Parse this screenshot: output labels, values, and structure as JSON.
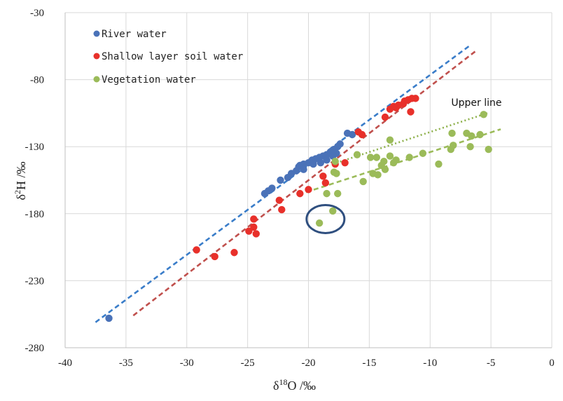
{
  "chart_data": {
    "type": "scatter",
    "title": "",
    "xlabel": "δ18O /‰",
    "xlabel_base": "δ",
    "xlabel_sup": "18",
    "xlabel_rest": "O /‰",
    "ylabel": "δ2H /‰",
    "ylabel_base": "δ",
    "ylabel_sup": "2",
    "ylabel_rest": "H /‰",
    "xlim": [
      -40,
      0
    ],
    "ylim": [
      -280,
      -30
    ],
    "xticks": [
      -40,
      -35,
      -30,
      -25,
      -20,
      -15,
      -10,
      -5,
      0
    ],
    "yticks": [
      -30,
      -80,
      -130,
      -180,
      -230,
      -280
    ],
    "grid": true,
    "legend_position": "top-left",
    "series": [
      {
        "name": "River water",
        "color": "#4a72b8",
        "points": [
          [
            -36.4,
            -258
          ],
          [
            -23.6,
            -165
          ],
          [
            -23.3,
            -163
          ],
          [
            -23.0,
            -161
          ],
          [
            -22.3,
            -155
          ],
          [
            -21.7,
            -153
          ],
          [
            -21.4,
            -150
          ],
          [
            -21.0,
            -148
          ],
          [
            -20.7,
            -144
          ],
          [
            -20.4,
            -143
          ],
          [
            -20.8,
            -145
          ],
          [
            -20.4,
            -147
          ],
          [
            -20.0,
            -142
          ],
          [
            -19.7,
            -140
          ],
          [
            -19.4,
            -139
          ],
          [
            -19.1,
            -138
          ],
          [
            -18.8,
            -137
          ],
          [
            -18.5,
            -136
          ],
          [
            -18.2,
            -134
          ],
          [
            -17.9,
            -132
          ],
          [
            -17.6,
            -130
          ],
          [
            -17.4,
            -128
          ],
          [
            -17.7,
            -135
          ],
          [
            -18.0,
            -137
          ],
          [
            -18.5,
            -140
          ],
          [
            -19.0,
            -142
          ],
          [
            -19.6,
            -143
          ],
          [
            -16.8,
            -120
          ],
          [
            -16.4,
            -121
          ]
        ]
      },
      {
        "name": "Shallow layer soil water",
        "color": "#e8302a",
        "points": [
          [
            -29.2,
            -207
          ],
          [
            -27.7,
            -212
          ],
          [
            -26.1,
            -209
          ],
          [
            -24.9,
            -193
          ],
          [
            -24.5,
            -190
          ],
          [
            -24.5,
            -184
          ],
          [
            -24.3,
            -195
          ],
          [
            -22.4,
            -170
          ],
          [
            -22.2,
            -177
          ],
          [
            -20.7,
            -165
          ],
          [
            -20.0,
            -162
          ],
          [
            -18.8,
            -152
          ],
          [
            -18.6,
            -157
          ],
          [
            -17.8,
            -143
          ],
          [
            -17.0,
            -142
          ],
          [
            -15.9,
            -119
          ],
          [
            -15.6,
            -121
          ],
          [
            -13.7,
            -108
          ],
          [
            -13.3,
            -102
          ],
          [
            -13.0,
            -100
          ],
          [
            -12.8,
            -101
          ],
          [
            -12.6,
            -99
          ],
          [
            -12.2,
            -98
          ],
          [
            -12.1,
            -96
          ],
          [
            -11.8,
            -95
          ],
          [
            -11.5,
            -94
          ],
          [
            -11.2,
            -94
          ],
          [
            -11.6,
            -104
          ]
        ]
      },
      {
        "name": "Vegetation water",
        "color": "#9bbb59",
        "points": [
          [
            -19.1,
            -187
          ],
          [
            -18.0,
            -178
          ],
          [
            -18.5,
            -165
          ],
          [
            -17.6,
            -165
          ],
          [
            -17.9,
            -149
          ],
          [
            -17.7,
            -150
          ],
          [
            -17.8,
            -141
          ],
          [
            -16.0,
            -136
          ],
          [
            -15.5,
            -156
          ],
          [
            -14.9,
            -138
          ],
          [
            -14.4,
            -138
          ],
          [
            -14.7,
            -150
          ],
          [
            -14.3,
            -151
          ],
          [
            -14.0,
            -144
          ],
          [
            -13.7,
            -147
          ],
          [
            -13.8,
            -141
          ],
          [
            -13.3,
            -137
          ],
          [
            -13.3,
            -125
          ],
          [
            -13.0,
            -142
          ],
          [
            -12.8,
            -140
          ],
          [
            -11.7,
            -138
          ],
          [
            -10.6,
            -135
          ],
          [
            -9.3,
            -143
          ],
          [
            -8.3,
            -132
          ],
          [
            -8.1,
            -129
          ],
          [
            -8.2,
            -120
          ],
          [
            -7.0,
            -120
          ],
          [
            -6.7,
            -130
          ],
          [
            -6.6,
            -122
          ],
          [
            -5.9,
            -121
          ],
          [
            -5.6,
            -106
          ],
          [
            -5.2,
            -132
          ]
        ]
      }
    ],
    "trendlines": [
      {
        "name": "River water trend",
        "color": "#3a7dc9",
        "style": "dashed",
        "from": [
          -37.5,
          -261
        ],
        "to": [
          -6.8,
          -55
        ]
      },
      {
        "name": "Shallow soil water trend",
        "color": "#c0504d",
        "style": "dashed",
        "from": [
          -34.4,
          -256
        ],
        "to": [
          -6.3,
          -59
        ]
      },
      {
        "name": "Vegetation upper line",
        "color": "#8db04a",
        "style": "dotted",
        "from": [
          -18.0,
          -143
        ],
        "to": [
          -5.3,
          -105
        ]
      },
      {
        "name": "Vegetation lower line",
        "color": "#9bbb59",
        "style": "dashed",
        "from": [
          -20.2,
          -164
        ],
        "to": [
          -4.2,
          -117
        ]
      }
    ],
    "annotations": [
      {
        "text": "Upper line",
        "at": [
          -7.0,
          -97
        ]
      },
      {
        "shape": "ellipse",
        "label": "outlier highlight",
        "center": [
          -18.6,
          -184
        ],
        "color": "#2f4f7f"
      }
    ]
  }
}
